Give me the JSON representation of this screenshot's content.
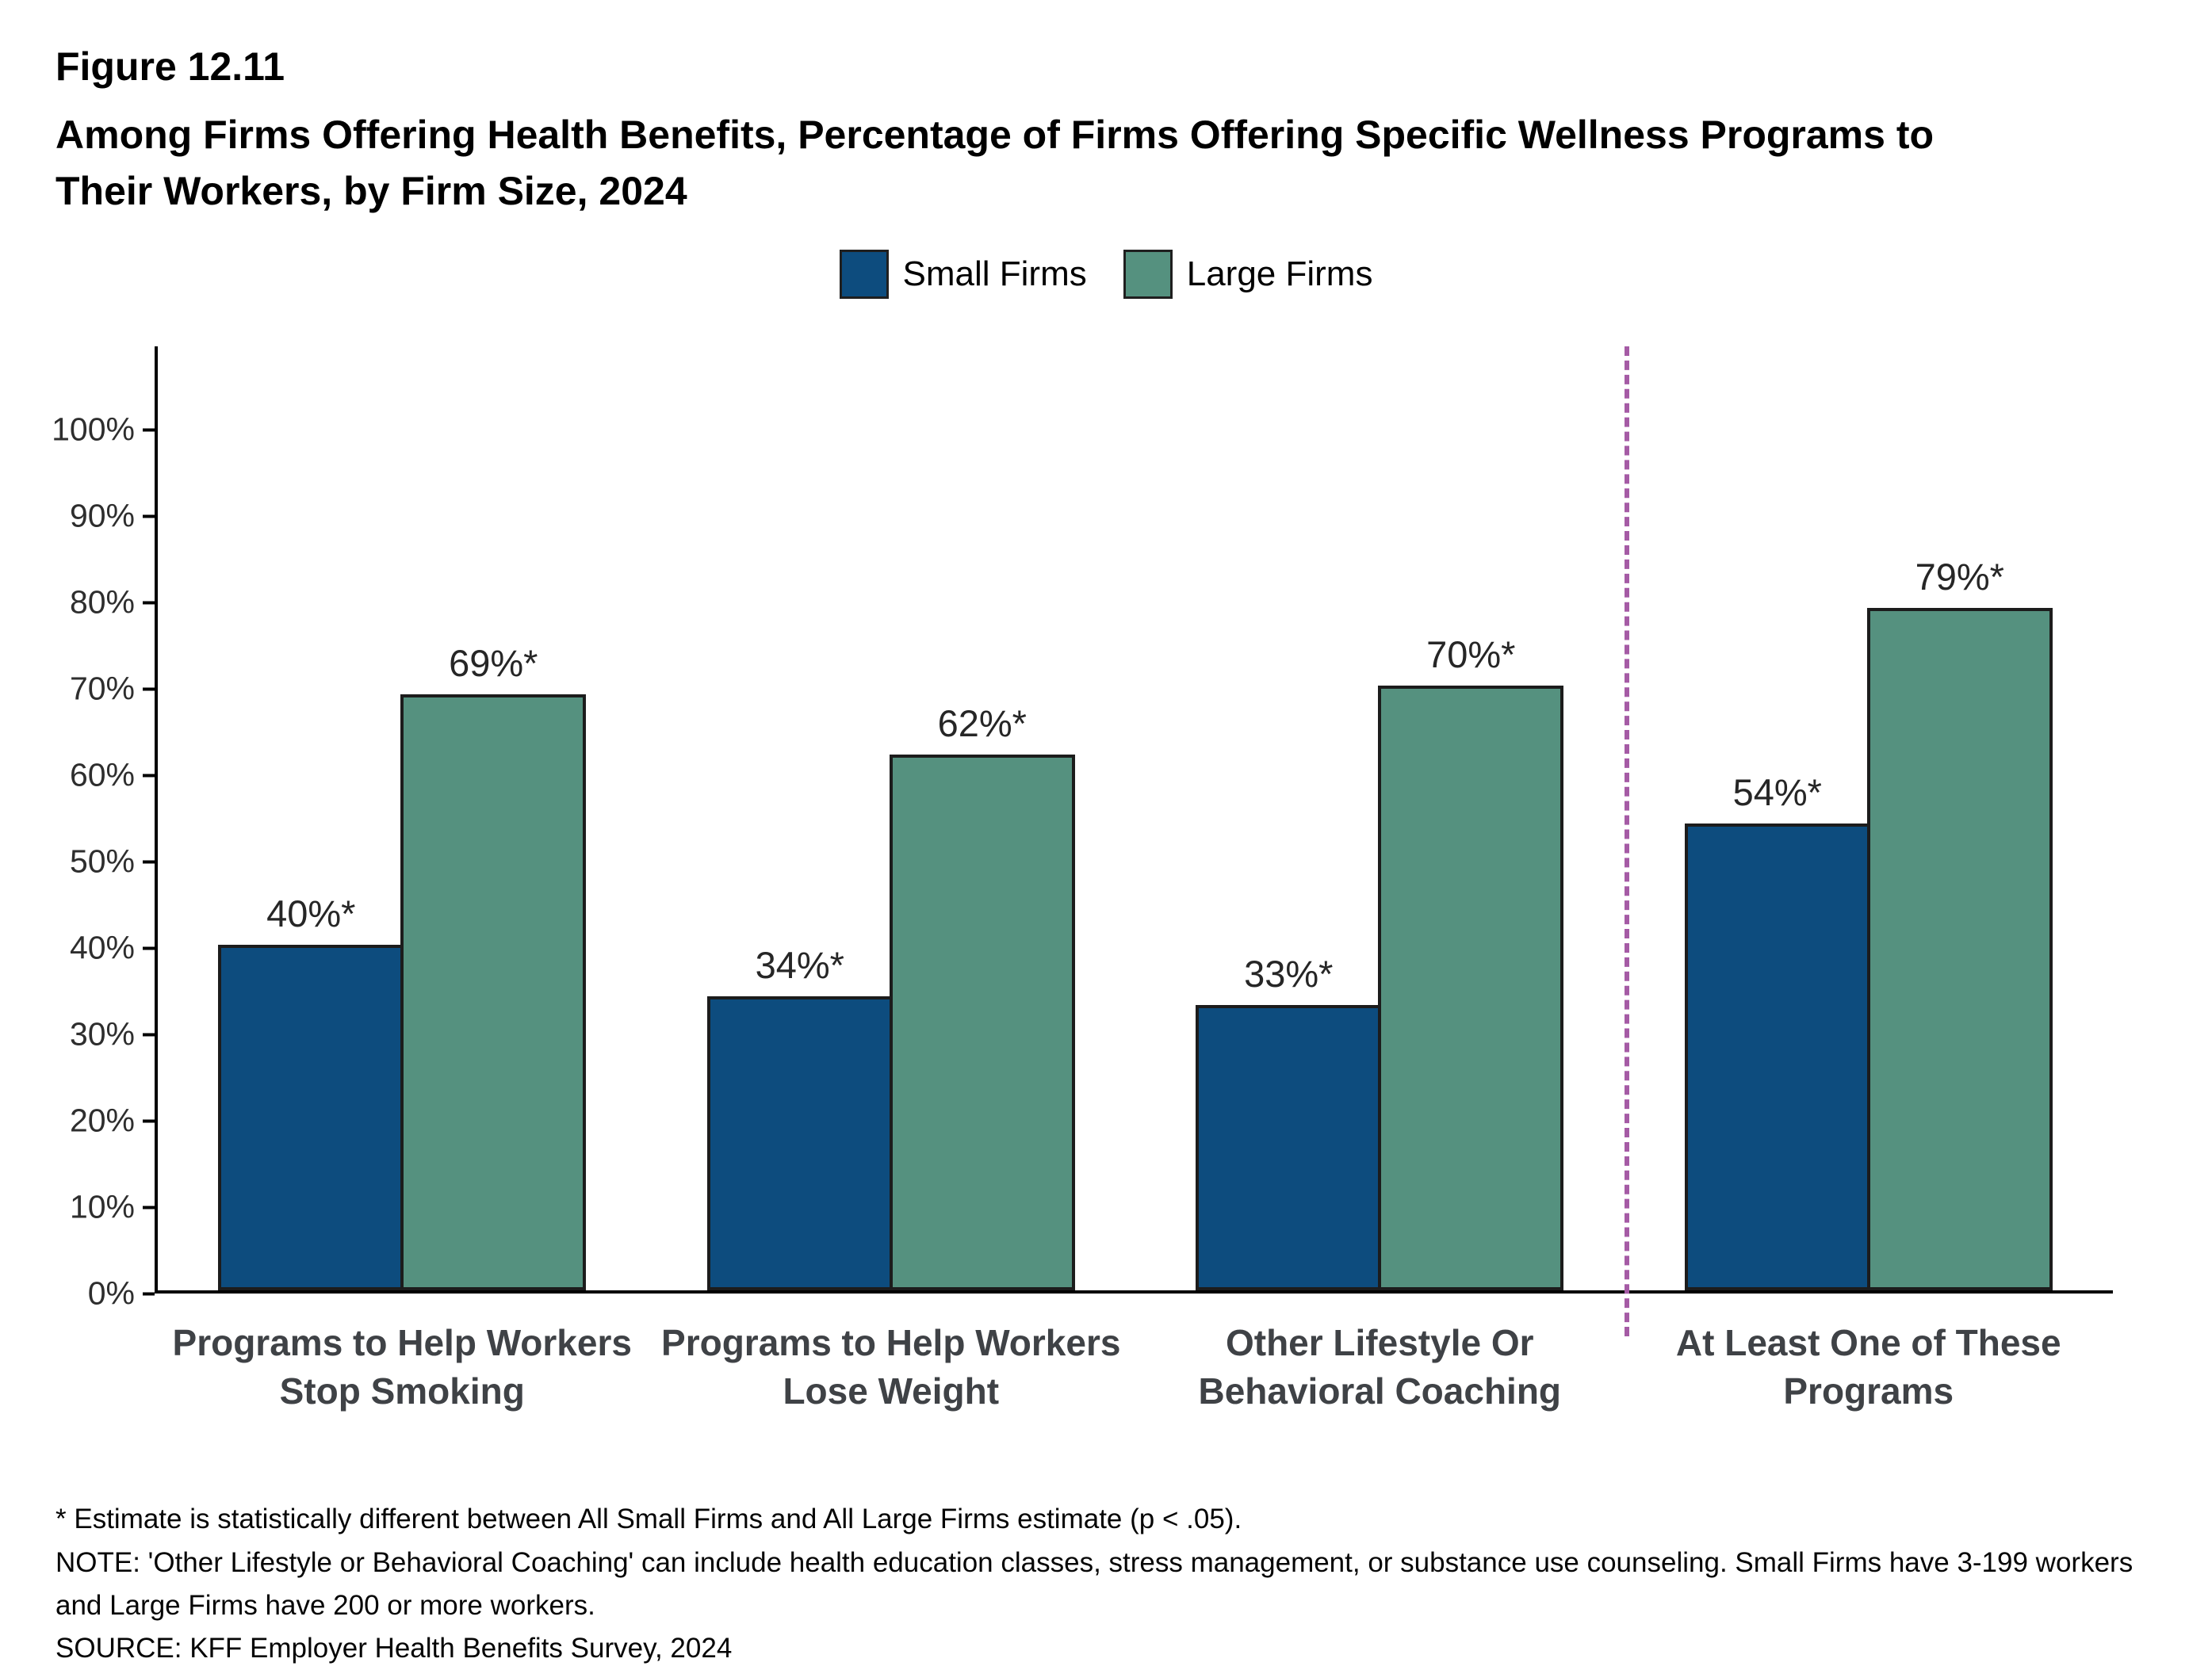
{
  "figure": {
    "number": "Figure 12.11",
    "title": "Among Firms Offering Health Benefits, Percentage of Firms Offering Specific Wellness Programs to Their Workers, by Firm Size, 2024"
  },
  "legend": [
    {
      "label": "Small Firms",
      "color": "#0d4c7e"
    },
    {
      "label": "Large Firms",
      "color": "#55917f"
    }
  ],
  "chart_data": {
    "type": "bar",
    "title": "Among Firms Offering Health Benefits, Percentage of Firms Offering Specific Wellness Programs to Their Workers, by Firm Size, 2024",
    "categories": [
      "Programs to Help Workers\nStop Smoking",
      "Programs to Help Workers\nLose Weight",
      "Other Lifestyle Or\nBehavioral Coaching",
      "At Least One of These\nPrograms"
    ],
    "series": [
      {
        "name": "Small Firms",
        "color": "#0d4c7e",
        "values": [
          40,
          34,
          33,
          54
        ],
        "labels": [
          "40%*",
          "34%*",
          "33%*",
          "54%*"
        ]
      },
      {
        "name": "Large Firms",
        "color": "#55917f",
        "values": [
          69,
          62,
          70,
          79
        ],
        "labels": [
          "69%*",
          "62%*",
          "70%*",
          "79%*"
        ]
      }
    ],
    "xlabel": "",
    "ylabel": "",
    "ylim": [
      0,
      100
    ],
    "ytick_step": 10,
    "ytick_suffix": "%",
    "grid": false,
    "legend_position": "top",
    "separator_after_category": 3,
    "separator_color": "#a55ba5",
    "separator_style": "dashed"
  },
  "footnotes": {
    "asterisk": "* Estimate is statistically different between All Small Firms and All Large Firms estimate (p < .05).",
    "note": "NOTE: 'Other Lifestyle or Behavioral Coaching' can include health education classes, stress management, or substance use counseling. Small Firms have 3-199 workers and Large Firms have 200 or more workers.",
    "source": "SOURCE: KFF Employer Health Benefits Survey, 2024"
  }
}
